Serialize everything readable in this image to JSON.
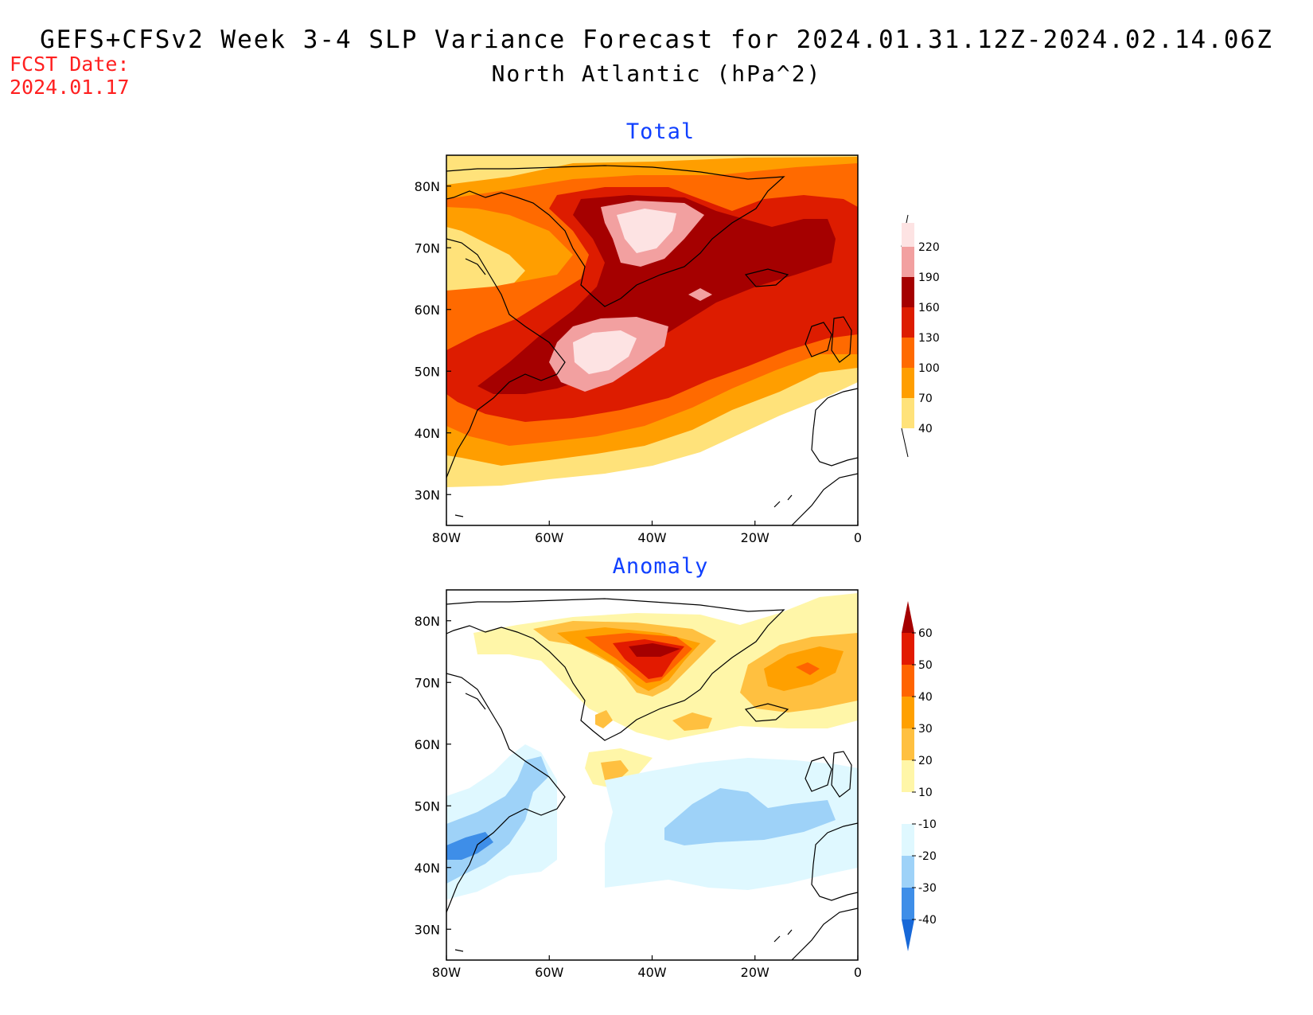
{
  "header": {
    "title": "GEFS+CFSv2 Week 3-4 SLP Variance Forecast for 2024.01.31.12Z-2024.02.14.06Z",
    "subtitle": "North Atlantic (hPa^2)",
    "fcst_label": "FCST Date:",
    "fcst_date": "2024.01.17"
  },
  "axes": {
    "lat_labels": [
      "80N",
      "70N",
      "60N",
      "50N",
      "40N",
      "30N"
    ],
    "lon_labels": [
      "80W",
      "60W",
      "40W",
      "20W",
      "0"
    ]
  },
  "panels": [
    {
      "title": "Total",
      "colorbar": {
        "levels": [
          "220",
          "190",
          "160",
          "130",
          "100",
          "70",
          "40"
        ],
        "colors": [
          "#fde3e3",
          "#f2a0a0",
          "#a50000",
          "#dd1c00",
          "#ff6a00",
          "#ff9e00",
          "#ffe27a"
        ]
      }
    },
    {
      "title": "Anomaly",
      "colorbar": {
        "levels": [
          "60",
          "50",
          "40",
          "30",
          "20",
          "10",
          "-10",
          "-20",
          "-30",
          "-40"
        ],
        "colors": [
          "#a50000",
          "#e21a00",
          "#ff6400",
          "#ffa000",
          "#ffc040",
          "#fff6a8",
          "#ffffff",
          "#dff8ff",
          "#9ed2f8",
          "#3e8ee8",
          "#1768d8"
        ]
      }
    }
  ]
}
